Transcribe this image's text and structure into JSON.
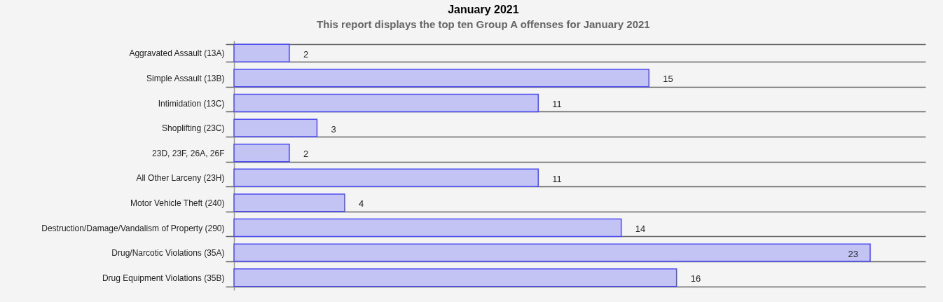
{
  "chart_data": {
    "type": "bar",
    "orientation": "horizontal",
    "title": "January 2021",
    "subtitle": "This report displays the top ten Group A offenses for January 2021",
    "categories": [
      "Aggravated Assault (13A)",
      "Simple Assault (13B)",
      "Intimidation (13C)",
      "Shoplifting (23C)",
      "23D, 23F, 26A, 26F",
      "All Other Larceny (23H)",
      "Motor Vehicle Theft (240)",
      "Destruction/Damage/Vandalism of Property (290)",
      "Drug/Narcotic Violations (35A)",
      "Drug Equipment Violations (35B)"
    ],
    "values": [
      2,
      15,
      11,
      3,
      2,
      11,
      4,
      14,
      23,
      16
    ],
    "color": "#c4c4f4",
    "xlim": [
      0,
      25
    ],
    "data_labels": true,
    "grid": "y",
    "tick_labels": "y"
  }
}
